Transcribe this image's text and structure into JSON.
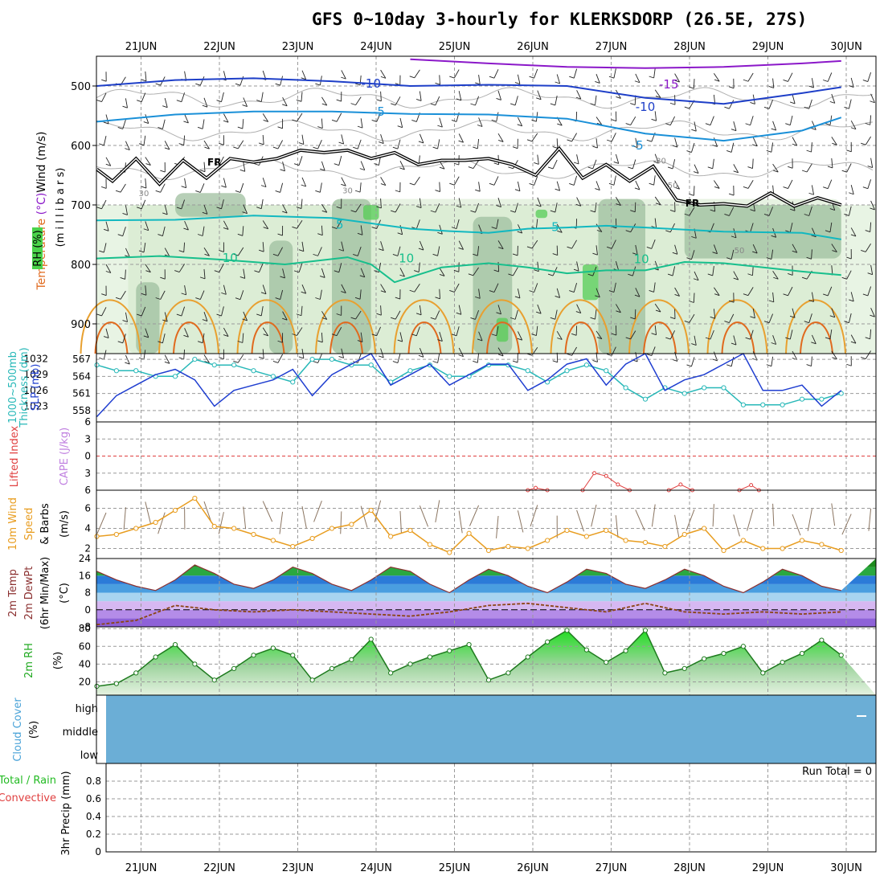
{
  "title": "GFS 0~10day 3-hourly for KLERKSDORP (26.5E, 27S)",
  "colors": {
    "temp_15": "#8b18c9",
    "temp_10": "#1e3fc8",
    "temp_5": "#1a90d8",
    "temp_fr": "#000000",
    "temp_p5": "#12b8c0",
    "temp_p10": "#17bf8c",
    "temp_p15": "#e89d20",
    "temp_p20": "#e06a1e",
    "slp": "#1f3ed0",
    "thickness": "#28b8b8",
    "li": "#e04040",
    "wind": "#e89d20",
    "rh_fill": "#22cc22",
    "cloud": "#6baed6",
    "grid": "#9a9a9a"
  },
  "chart_data": [
    {
      "type": "heatmap",
      "panel": "upper-air",
      "ylabel_parts": [
        "Temperature",
        " (°C)",
        "Wind",
        " (m/s)"
      ],
      "ylabel_right": "(m i l l i b a r s)",
      "rh_label": "RH (%)",
      "ylim": [
        950,
        450
      ],
      "yticks": [
        500,
        600,
        700,
        800,
        900
      ],
      "x_date_labels": [
        "21JUN",
        "22JUN",
        "23JUN",
        "24JUN",
        "25JUN",
        "26JUN",
        "27JUN",
        "28JUN",
        "29JUN",
        "30JUN"
      ],
      "isotherm_labels": [
        {
          "text": "-15",
          "x": 7.3,
          "p": 497
        },
        {
          "text": "-10",
          "x": 3.5,
          "p": 496
        },
        {
          "text": "-10",
          "x": 7.0,
          "p": 535
        },
        {
          "text": "-5",
          "x": 3.6,
          "p": 543
        },
        {
          "text": "-5",
          "x": 6.9,
          "p": 600
        },
        {
          "text": "FR",
          "x": 1.5,
          "p": 627
        },
        {
          "text": "FR",
          "x": 7.6,
          "p": 696
        },
        {
          "text": "5",
          "x": 3.1,
          "p": 733
        },
        {
          "text": "5",
          "x": 5.85,
          "p": 737
        },
        {
          "text": "10",
          "x": 1.7,
          "p": 789
        },
        {
          "text": "10",
          "x": 3.95,
          "p": 790
        },
        {
          "text": "10",
          "x": 6.95,
          "p": 791
        }
      ],
      "rh_labels": [
        {
          "text": "30",
          "x": 0.6,
          "p": 680
        },
        {
          "text": "30",
          "x": 3.2,
          "p": 675
        },
        {
          "text": "30",
          "x": 7.2,
          "p": 625
        },
        {
          "text": "50",
          "x": 7.35,
          "p": 666
        },
        {
          "text": "50",
          "x": 8.2,
          "p": 776
        }
      ],
      "isotherms": [
        {
          "name": "-15",
          "color": "#8b18c9",
          "x": [
            4.0,
            5.0,
            6.0,
            7.0,
            8.0,
            9.0,
            9.5
          ],
          "p": [
            455,
            462,
            468,
            470,
            468,
            462,
            458
          ]
        },
        {
          "name": "-10",
          "color": "#1e3fc8",
          "x": [
            0,
            1,
            2,
            3,
            4,
            5,
            6,
            7,
            8,
            9,
            9.5
          ],
          "p": [
            500,
            490,
            487,
            492,
            500,
            498,
            500,
            520,
            530,
            512,
            502
          ]
        },
        {
          "name": "-5",
          "color": "#1a90d8",
          "x": [
            0,
            1,
            2,
            3,
            4,
            5,
            6,
            7,
            8,
            9,
            9.5
          ],
          "p": [
            560,
            548,
            543,
            543,
            547,
            548,
            555,
            580,
            592,
            575,
            553
          ]
        },
        {
          "name": "5",
          "color": "#12b8c0",
          "x": [
            0,
            1,
            2,
            3,
            4,
            4.5,
            5,
            5.5,
            6,
            6.5,
            7,
            8,
            9,
            9.5
          ],
          "p": [
            726,
            725,
            718,
            722,
            740,
            744,
            747,
            740,
            738,
            735,
            738,
            745,
            747,
            758
          ]
        },
        {
          "name": "10",
          "color": "#17bf8c",
          "x": [
            0,
            0.8,
            1.6,
            2.4,
            3.2,
            3.5,
            3.8,
            4.4,
            5,
            5.5,
            6,
            6.5,
            7,
            7.5,
            8,
            9,
            9.5
          ],
          "p": [
            790,
            786,
            792,
            800,
            788,
            800,
            830,
            805,
            798,
            805,
            815,
            810,
            810,
            796,
            798,
            812,
            818
          ]
        }
      ],
      "freezing_level": {
        "x": [
          0,
          0.2,
          0.5,
          0.8,
          1.1,
          1.4,
          1.7,
          2.0,
          2.3,
          2.6,
          2.9,
          3.2,
          3.5,
          3.8,
          4.1,
          4.4,
          4.7,
          5.0,
          5.3,
          5.6,
          5.9,
          6.2,
          6.5,
          6.8,
          7.1,
          7.4,
          7.7,
          8.0,
          8.3,
          8.6,
          8.9,
          9.2,
          9.5
        ],
        "p": [
          640,
          660,
          622,
          665,
          625,
          655,
          622,
          628,
          622,
          608,
          612,
          608,
          622,
          612,
          632,
          625,
          625,
          622,
          632,
          650,
          605,
          655,
          632,
          660,
          635,
          692,
          700,
          698,
          702,
          680,
          702,
          688,
          700
        ]
      },
      "rh_regions": [
        {
          "x0": 0.4,
          "x1": 3.0,
          "p0": 700,
          "p1": 950,
          "level": 1
        },
        {
          "x0": 3.0,
          "x1": 9.5,
          "p0": 690,
          "p1": 950,
          "level": 1
        },
        {
          "x0": 1.0,
          "x1": 1.9,
          "p0": 680,
          "p1": 720,
          "level": 2
        },
        {
          "x0": 0.5,
          "x1": 0.8,
          "p0": 830,
          "p1": 950,
          "level": 2
        },
        {
          "x0": 2.2,
          "x1": 2.5,
          "p0": 760,
          "p1": 950,
          "level": 2
        },
        {
          "x0": 3.0,
          "x1": 3.5,
          "p0": 690,
          "p1": 950,
          "level": 2
        },
        {
          "x0": 4.8,
          "x1": 5.3,
          "p0": 720,
          "p1": 950,
          "level": 2
        },
        {
          "x0": 6.4,
          "x1": 7.0,
          "p0": 690,
          "p1": 950,
          "level": 2
        },
        {
          "x0": 7.5,
          "x1": 9.5,
          "p0": 700,
          "p1": 790,
          "level": 2
        },
        {
          "x0": 3.4,
          "x1": 3.6,
          "p0": 700,
          "p1": 725,
          "level": 3
        },
        {
          "x0": 5.6,
          "x1": 5.75,
          "p0": 708,
          "p1": 722,
          "level": 3
        },
        {
          "x0": 6.2,
          "x1": 6.4,
          "p0": 800,
          "p1": 860,
          "level": 3
        },
        {
          "x0": 5.1,
          "x1": 5.25,
          "p0": 890,
          "p1": 930,
          "level": 3
        }
      ]
    },
    {
      "type": "line",
      "panel": "thickness-slp",
      "ylabel_left": "1000~500mb",
      "ylabel_left2": "Thickness (dm)",
      "ylabel_right": "SLP (mb)",
      "yticks_left": [
        558,
        561,
        564,
        567
      ],
      "yticks_right": [
        1023,
        1026,
        1029,
        1032
      ],
      "ylim_left": [
        556,
        568
      ],
      "ylim_right": [
        1020,
        1033
      ],
      "series": [
        {
          "name": "SLP (mb)",
          "axis": "right",
          "color": "#1f3ed0",
          "x": [
            0,
            0.25,
            0.5,
            0.75,
            1.0,
            1.25,
            1.5,
            1.75,
            2.0,
            2.25,
            2.5,
            2.75,
            3.0,
            3.25,
            3.5,
            3.75,
            4.0,
            4.25,
            4.5,
            4.75,
            5.0,
            5.25,
            5.5,
            5.75,
            6.0,
            6.25,
            6.5,
            6.75,
            7.0,
            7.25,
            7.5,
            7.75,
            8.0,
            8.25,
            8.5,
            8.75,
            9.0,
            9.25,
            9.5
          ],
          "y": [
            1021,
            1025,
            1027,
            1029,
            1030,
            1028,
            1023,
            1026,
            1027,
            1028,
            1030,
            1025,
            1029,
            1031,
            1033,
            1027,
            1029,
            1031,
            1027,
            1029,
            1031,
            1031,
            1026,
            1028,
            1031,
            1032,
            1027,
            1031,
            1033,
            1026,
            1028,
            1029,
            1031,
            1033,
            1026,
            1026,
            1027,
            1023,
            1026
          ]
        },
        {
          "name": "Thickness (dm)",
          "axis": "left",
          "color": "#28b8b8",
          "x": [
            0,
            0.25,
            0.5,
            0.75,
            1.0,
            1.25,
            1.5,
            1.75,
            2.0,
            2.25,
            2.5,
            2.75,
            3.0,
            3.25,
            3.5,
            3.75,
            4.0,
            4.25,
            4.5,
            4.75,
            5.0,
            5.25,
            5.5,
            5.75,
            6.0,
            6.25,
            6.5,
            6.75,
            7.0,
            7.25,
            7.5,
            7.75,
            8.0,
            8.25,
            8.5,
            8.75,
            9.0,
            9.25,
            9.5
          ],
          "y": [
            566,
            565,
            565,
            564,
            564,
            567,
            566,
            566,
            565,
            564,
            563,
            567,
            567,
            566,
            566,
            563,
            565,
            566,
            564,
            564,
            566,
            566,
            565,
            563,
            565,
            566,
            565,
            562,
            560,
            562,
            561,
            562,
            562,
            559,
            559,
            559,
            560,
            560,
            561
          ]
        }
      ]
    },
    {
      "type": "line",
      "panel": "li-cape",
      "ylabel_left": "Lifted Index",
      "ylabel_right": "CAPE (J/kg)",
      "yticks": [
        -6,
        -3,
        0,
        3,
        6
      ],
      "ylim": [
        6,
        -6
      ],
      "series": [
        {
          "name": "Lifted Index",
          "color": "#e04040",
          "segments": [
            {
              "x": [
                5.5,
                5.6,
                5.75
              ],
              "y": [
                6,
                5.6,
                6
              ]
            },
            {
              "x": [
                6.2,
                6.35,
                6.5,
                6.65,
                6.8
              ],
              "y": [
                6,
                3.0,
                3.5,
                5.0,
                6
              ]
            },
            {
              "x": [
                7.3,
                7.45,
                7.6
              ],
              "y": [
                6,
                5.0,
                6
              ]
            },
            {
              "x": [
                8.2,
                8.35,
                8.45
              ],
              "y": [
                6,
                5.1,
                6
              ]
            }
          ]
        }
      ]
    },
    {
      "type": "line",
      "panel": "wind",
      "ylabel_parts": [
        "10m Wind",
        "Speed",
        "& Barbs"
      ],
      "yunit": "(m/s)",
      "yticks": [
        2,
        4,
        6
      ],
      "ylim": [
        1,
        7.8
      ],
      "series": [
        {
          "name": "10m Wind Speed",
          "color": "#e89d20",
          "x": [
            0,
            0.25,
            0.5,
            0.75,
            1.0,
            1.25,
            1.5,
            1.75,
            2.0,
            2.25,
            2.5,
            2.75,
            3.0,
            3.25,
            3.5,
            3.75,
            4.0,
            4.25,
            4.5,
            4.75,
            5.0,
            5.25,
            5.5,
            5.75,
            6.0,
            6.25,
            6.5,
            6.75,
            7.0,
            7.25,
            7.5,
            7.75,
            8.0,
            8.25,
            8.5,
            8.75,
            9.0,
            9.25,
            9.5
          ],
          "y": [
            3.2,
            3.4,
            4.0,
            4.6,
            5.8,
            7.0,
            4.2,
            4.0,
            3.4,
            2.8,
            2.2,
            3.0,
            4.0,
            4.4,
            5.8,
            3.2,
            3.8,
            2.4,
            1.6,
            3.5,
            1.8,
            2.2,
            2.0,
            2.8,
            3.8,
            3.2,
            3.8,
            2.8,
            2.6,
            2.2,
            3.4,
            4.0,
            1.8,
            2.8,
            2.0,
            2.0,
            2.8,
            2.4,
            1.8
          ]
        }
      ]
    },
    {
      "type": "area",
      "panel": "temperature",
      "ylabel_parts": [
        "2m Temp",
        "2m DewPt",
        "(6hr Min/Max)"
      ],
      "yunit": "(°C)",
      "yticks": [
        -8,
        0,
        8,
        16,
        24
      ],
      "ylim": [
        -8,
        24
      ],
      "series": [
        {
          "name": "2m Temp",
          "color": "#1e8b1e",
          "x": [
            0,
            0.25,
            0.5,
            0.75,
            1.0,
            1.25,
            1.5,
            1.75,
            2.0,
            2.25,
            2.5,
            2.75,
            3.0,
            3.25,
            3.5,
            3.75,
            4.0,
            4.25,
            4.5,
            4.75,
            5.0,
            5.25,
            5.5,
            5.75,
            6.0,
            6.25,
            6.5,
            6.75,
            7.0,
            7.25,
            7.5,
            7.75,
            8.0,
            8.25,
            8.5,
            8.75,
            9.0,
            9.25,
            9.5
          ],
          "y": [
            18,
            14,
            11,
            9,
            14,
            21,
            17,
            12,
            10,
            14,
            20,
            17,
            12,
            9,
            14,
            20,
            18,
            12,
            8,
            14,
            19,
            16,
            11,
            8,
            13,
            19,
            17,
            12,
            10,
            14,
            19,
            16,
            11,
            8,
            13,
            19,
            16,
            11,
            9
          ]
        },
        {
          "name": "2m DewPt",
          "color": "#8b4513",
          "x": [
            0,
            0.5,
            1.0,
            1.5,
            2.0,
            2.5,
            3.0,
            3.5,
            4.0,
            4.5,
            5.0,
            5.5,
            6.0,
            6.5,
            7.0,
            7.5,
            8.0,
            8.5,
            9.0,
            9.5
          ],
          "y": [
            -7,
            -5,
            2,
            0,
            -1,
            0,
            -1,
            -2,
            -3,
            -1,
            2,
            3,
            1,
            -1,
            3,
            -1,
            -2,
            -1,
            -2,
            -1
          ]
        }
      ]
    },
    {
      "type": "area",
      "panel": "rh",
      "ylabel": "2m RH",
      "yunit": "(%)",
      "yticks": [
        20,
        40,
        60,
        80
      ],
      "ylim": [
        5,
        82
      ],
      "series": [
        {
          "name": "2m RH",
          "color": "#22cc22",
          "x": [
            0,
            0.25,
            0.5,
            0.75,
            1.0,
            1.25,
            1.5,
            1.75,
            2.0,
            2.25,
            2.5,
            2.75,
            3.0,
            3.25,
            3.5,
            3.75,
            4.0,
            4.25,
            4.5,
            4.75,
            5.0,
            5.25,
            5.5,
            5.75,
            6.0,
            6.25,
            6.5,
            6.75,
            7.0,
            7.25,
            7.5,
            7.75,
            8.0,
            8.25,
            8.5,
            8.75,
            9.0,
            9.25,
            9.5
          ],
          "y": [
            15,
            18,
            30,
            48,
            62,
            40,
            22,
            35,
            50,
            58,
            50,
            22,
            35,
            45,
            68,
            30,
            40,
            48,
            55,
            62,
            22,
            30,
            48,
            65,
            78,
            56,
            42,
            55,
            78,
            30,
            35,
            46,
            52,
            60,
            30,
            42,
            52,
            67,
            50
          ]
        }
      ]
    },
    {
      "type": "heatmap",
      "panel": "cloud",
      "ylabel": "Cloud Cover",
      "yunit": "(%)",
      "levels": [
        "high",
        "middle",
        "low"
      ]
    },
    {
      "type": "bar",
      "panel": "precip",
      "ylabel_parts": [
        "Total / Rain",
        "Convective"
      ],
      "yunit": "3hr Precip (mm)",
      "yticks": [
        "0",
        "0.2",
        "0.4",
        "0.6",
        "0.8"
      ],
      "ylim": [
        0,
        1.0
      ],
      "run_total": "Run Total = 0",
      "values": []
    }
  ]
}
